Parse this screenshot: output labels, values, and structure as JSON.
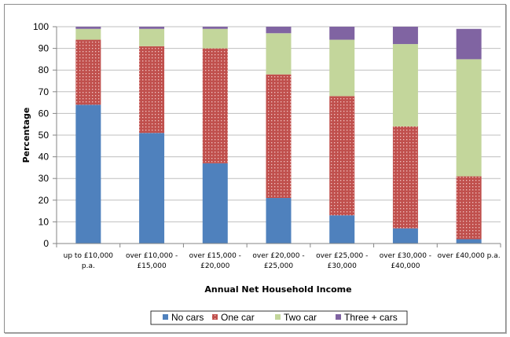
{
  "chart_data": {
    "type": "bar",
    "stacked": true,
    "title": "",
    "xlabel": "Annual Net Household Income",
    "ylabel": "Percentage",
    "ylim": [
      0,
      100
    ],
    "yticks": [
      0,
      10,
      20,
      30,
      40,
      50,
      60,
      70,
      80,
      90,
      100
    ],
    "grid": true,
    "legend_position": "bottom",
    "categories": [
      [
        "up to £10,000",
        "p.a."
      ],
      [
        "over £10,000 -",
        "£15,000"
      ],
      [
        "over £15,000 -",
        "£20,000"
      ],
      [
        "over £20,000 -",
        "£25,000"
      ],
      [
        "over £25,000 -",
        "£30,000"
      ],
      [
        "over £30,000 -",
        "£40,000"
      ],
      [
        "over £40,000 p.a.",
        ""
      ]
    ],
    "series": [
      {
        "name": "No cars",
        "color": "#4f81bd",
        "pattern": "solid",
        "values": [
          64,
          51,
          37,
          21,
          13,
          7,
          2
        ]
      },
      {
        "name": "One car",
        "color": "#c0504d",
        "pattern": "dotted",
        "values": [
          30,
          40,
          53,
          57,
          55,
          47,
          29
        ]
      },
      {
        "name": "Two car",
        "color": "#c3d69b",
        "pattern": "solid",
        "values": [
          5,
          8,
          9,
          19,
          26,
          38,
          54
        ]
      },
      {
        "name": "Three + cars",
        "color": "#8064a2",
        "pattern": "solid",
        "values": [
          1,
          1,
          1,
          3,
          6,
          8,
          14
        ]
      }
    ]
  }
}
